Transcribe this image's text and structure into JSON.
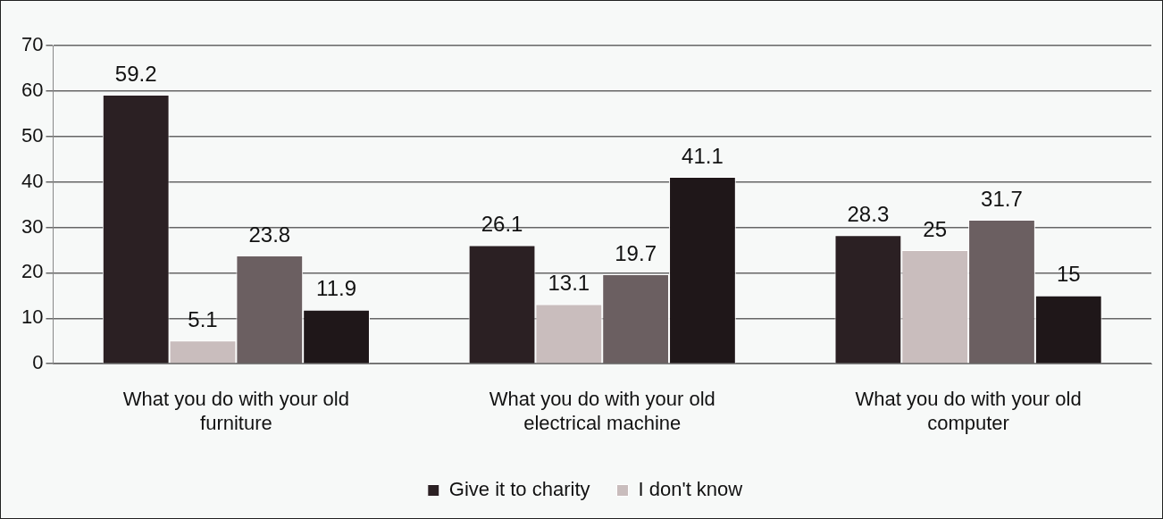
{
  "chart_data": {
    "type": "bar",
    "categories": [
      "What you do with your old furniture",
      "What you do with your old electrical machine",
      "What you do with your old computer"
    ],
    "series": [
      {
        "name": "Give it to charity",
        "color": "#2b2023",
        "values": [
          59.2,
          26.1,
          28.3
        ]
      },
      {
        "name": "I don't know",
        "color": "#c9bdbd",
        "values": [
          5.1,
          13.1,
          25
        ]
      },
      {
        "color": "#6b5f61",
        "values": [
          23.8,
          19.7,
          31.7
        ]
      },
      {
        "color": "#1f1719",
        "values": [
          11.9,
          41.1,
          15
        ]
      }
    ],
    "ylim": [
      0,
      70
    ],
    "yticks": [
      0,
      10,
      20,
      30,
      40,
      50,
      60,
      70
    ],
    "grid": "y",
    "legend": "bottom",
    "data_labels": true
  }
}
